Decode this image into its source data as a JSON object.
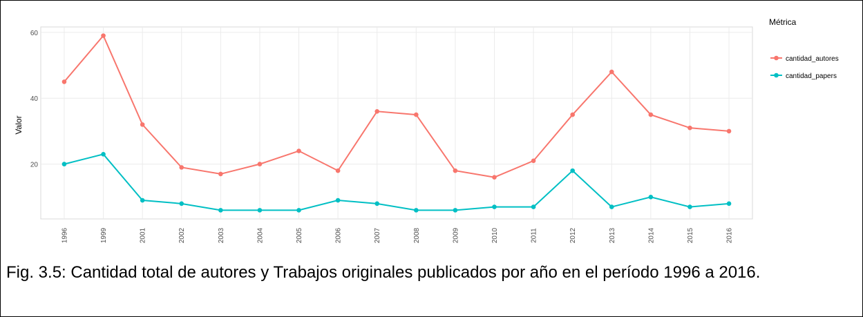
{
  "chart_data": {
    "type": "line",
    "y_label": "Valor",
    "legend_title": "Métrica",
    "categories": [
      "1996",
      "1999",
      "2001",
      "2002",
      "2003",
      "2004",
      "2005",
      "2006",
      "2007",
      "2008",
      "2009",
      "2010",
      "2011",
      "2012",
      "2013",
      "2014",
      "2015",
      "2016"
    ],
    "series": [
      {
        "name": "cantidad_autores",
        "color": "#F8766D",
        "values": [
          45,
          59,
          32,
          19,
          17,
          20,
          24,
          18,
          36,
          35,
          18,
          16,
          21,
          35,
          48,
          35,
          31,
          30
        ]
      },
      {
        "name": "cantidad_papers",
        "color": "#00BFC4",
        "values": [
          20,
          23,
          9,
          8,
          6,
          6,
          6,
          9,
          8,
          6,
          6,
          7,
          7,
          18,
          7,
          10,
          7,
          8
        ]
      }
    ],
    "ylim": [
      3.35,
      61.65
    ],
    "yticks": [
      20,
      40,
      60
    ],
    "grid": true,
    "caption": "Fig. 3.5: Cantidad total de autores y Trabajos originales publicados por año en el período 1996 a 2016."
  }
}
